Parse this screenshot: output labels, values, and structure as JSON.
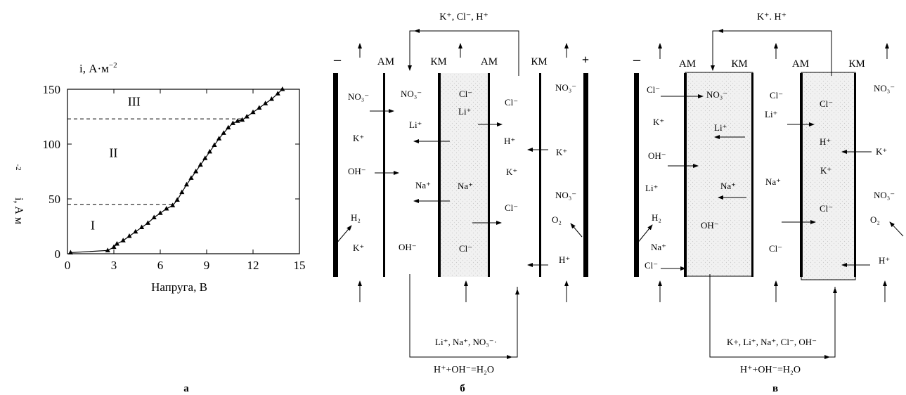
{
  "chart_data": {
    "type": "line",
    "title": "",
    "ylabel_top": "i, А·м",
    "ylabel_top_sup": "−2",
    "ylabel_side": "i, А м",
    "ylabel_side_sup": "-2",
    "xlabel": "Напруга, В",
    "xlim": [
      0,
      15
    ],
    "ylim": [
      0,
      150
    ],
    "xticks": [
      "0",
      "3",
      "6",
      "9",
      "12",
      "15"
    ],
    "yticks": [
      "0",
      "50",
      "100",
      "150"
    ],
    "regions": [
      "I",
      "II",
      "III"
    ],
    "region_lines": [
      45,
      123
    ],
    "series": [
      {
        "marker": "triangle",
        "x": [
          0.2,
          2.6,
          3.0,
          3.2,
          3.6,
          4.0,
          4.4,
          4.8,
          5.2,
          5.6,
          6.0,
          6.4,
          6.8,
          7.1,
          7.4,
          7.7,
          8.0,
          8.3,
          8.6,
          8.9,
          9.2,
          9.5,
          9.8,
          10.1,
          10.4,
          10.7,
          11.0,
          11.3,
          11.6,
          12.0,
          12.4,
          12.8,
          13.2,
          13.6,
          13.9
        ],
        "y": [
          1,
          3,
          6,
          9,
          12,
          16,
          20,
          24,
          28,
          33,
          37,
          41,
          44,
          49,
          56,
          63,
          69,
          75,
          81,
          87,
          93,
          99,
          105,
          110,
          115,
          119,
          121,
          122,
          125,
          129,
          133,
          137,
          141,
          146,
          150
        ]
      }
    ]
  },
  "panel_labels": {
    "a": "а",
    "b": "б",
    "c": "в"
  },
  "diagram_b": {
    "sign_minus": "–",
    "sign_plus": "+",
    "membranes": [
      "АМ",
      "КМ",
      "АМ",
      "КМ"
    ],
    "top_flow": "K⁺, Cl⁻, H⁺",
    "bottom_flow": "Li⁺, Na⁺, NO₃⁻·",
    "reaction": "H⁺+OH⁻=H₂O",
    "col1": [
      "NO₃⁻",
      "K⁺",
      "OH⁻",
      "H₂",
      "K⁺"
    ],
    "col2": [
      "NO₃⁻",
      "Li⁺",
      "Na⁺",
      "OH⁻"
    ],
    "col3": [
      "Cl⁻",
      "Li⁺",
      "Na⁺",
      "Cl⁻"
    ],
    "col4": [
      "Cl⁻",
      "H⁺",
      "K⁺",
      "Cl⁻"
    ],
    "col5": [
      "NO₃⁻",
      "K⁺",
      "NO₃⁻",
      "O₂",
      "H⁺"
    ]
  },
  "diagram_c": {
    "sign_minus": "–",
    "membranes": [
      "АМ",
      "КМ",
      "АМ",
      "КМ"
    ],
    "top_flow": "K⁺. H⁺",
    "bottom_flow": "K+, Li⁺, Na⁺, Cl⁻, OH⁻",
    "reaction": "H⁺+OH⁻=H₂O",
    "col1": [
      "Cl⁻",
      "K⁺",
      "OH⁻",
      "Li⁺",
      "H₂",
      "Na⁺",
      "Cl⁻"
    ],
    "col2": [
      "NO₃⁻",
      "Li⁺",
      "Na⁺",
      "OH⁻"
    ],
    "col3": [
      "Cl⁻",
      "Li⁺",
      "Na⁺",
      "Cl⁻"
    ],
    "col4": [
      "Cl⁻",
      "H⁺",
      "K⁺",
      "Cl⁻"
    ],
    "col5": [
      "NO₃⁻",
      "K⁺",
      "NO₃⁻",
      "O₂",
      "H⁺"
    ]
  }
}
